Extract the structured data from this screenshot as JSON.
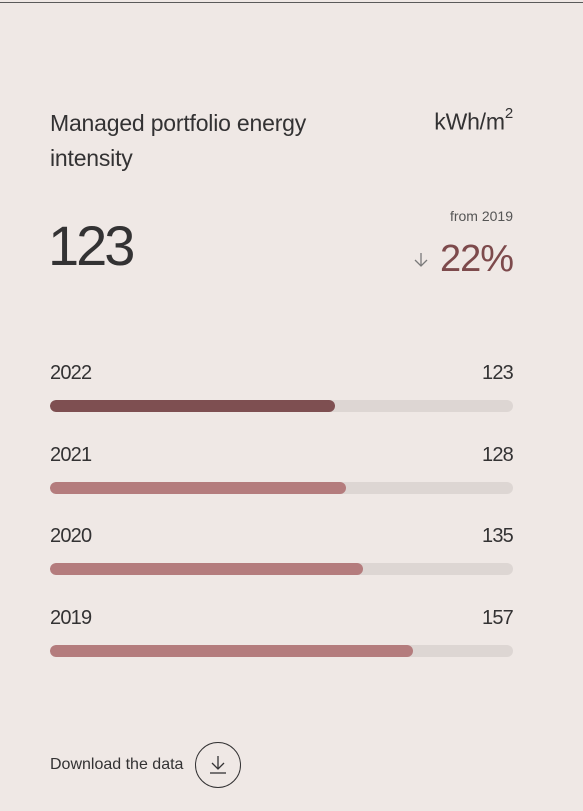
{
  "card": {
    "title": "Managed portfolio energy intensity",
    "unit_base": "kWh/m",
    "unit_sup": "2",
    "current_value": "123",
    "change_caption": "from 2019",
    "change_value": "22%",
    "change_icon": "down-arrow-icon",
    "download_label": "Download the data",
    "download_icon": "download-icon"
  },
  "colors": {
    "background": "#efe8e5",
    "track": "#ddd6d3",
    "current_fill": "#7e4f51",
    "previous_fill": "#b47c7d",
    "accent_text": "#7d4a4c"
  },
  "chart_data": {
    "type": "bar",
    "categories": [
      "2022",
      "2021",
      "2020",
      "2019"
    ],
    "values": [
      123,
      128,
      135,
      157
    ],
    "value_labels": [
      "123",
      "128",
      "135",
      "157"
    ],
    "xlim": [
      0,
      200
    ],
    "grid": false
  }
}
